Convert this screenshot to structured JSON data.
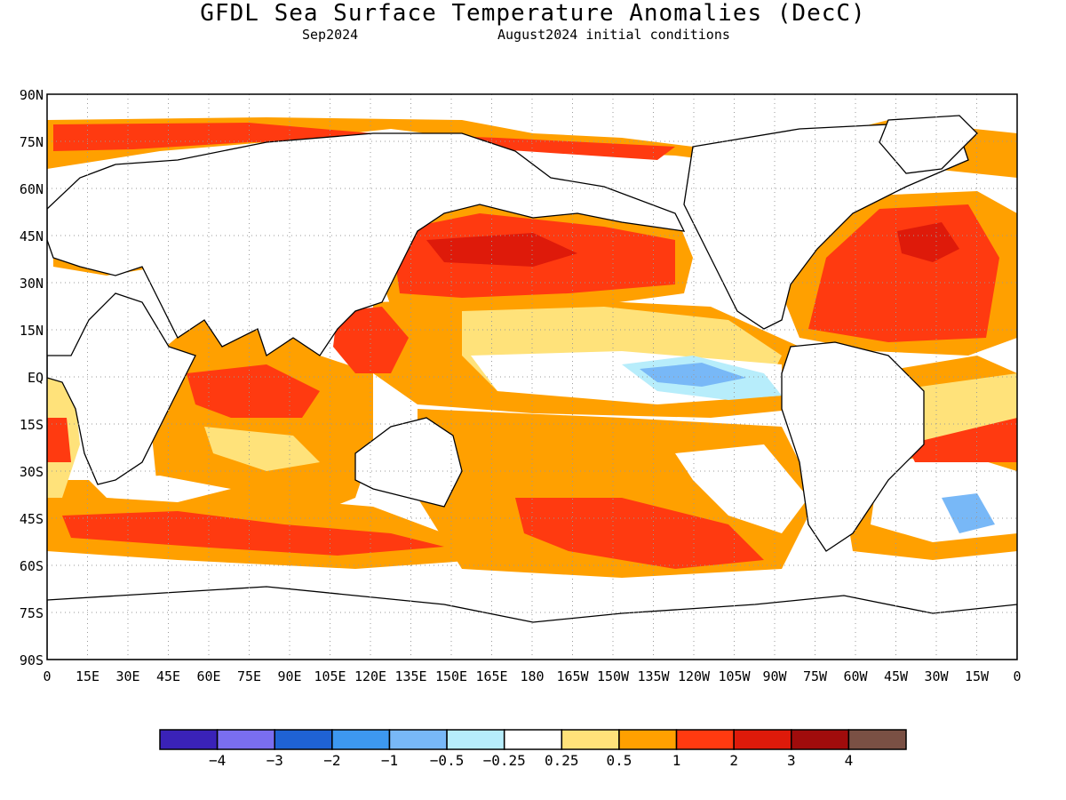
{
  "title": "GFDL Sea Surface Temperature Anomalies (DecC)",
  "subtitle_left": "Sep2024",
  "subtitle_right": "August2024 initial conditions",
  "lat_labels": [
    "90N",
    "75N",
    "60N",
    "45N",
    "30N",
    "15N",
    "EQ",
    "15S",
    "30S",
    "45S",
    "60S",
    "75S",
    "90S"
  ],
  "lon_labels": [
    "0",
    "15E",
    "30E",
    "45E",
    "60E",
    "75E",
    "90E",
    "105E",
    "120E",
    "135E",
    "150E",
    "165E",
    "180",
    "165W",
    "150W",
    "135W",
    "120W",
    "105W",
    "90W",
    "75W",
    "60W",
    "45W",
    "30W",
    "15W",
    "0"
  ],
  "colorbar": {
    "colors": [
      "#3a22b8",
      "#7a6ef0",
      "#1f62d4",
      "#3d98f0",
      "#78b8f7",
      "#b7edfb",
      "#ffffff",
      "#ffe27a",
      "#ffa000",
      "#ff3a10",
      "#de1a0a",
      "#a00c0c",
      "#7a5044"
    ],
    "labels": [
      "-4",
      "-3",
      "-2",
      "-1",
      "-0.5",
      "-0.25",
      "0.25",
      "0.5",
      "1",
      "2",
      "3",
      "4"
    ]
  }
}
